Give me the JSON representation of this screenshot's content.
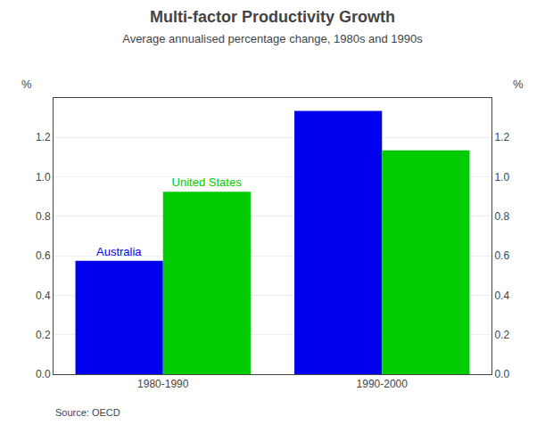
{
  "chart_data": {
    "type": "bar",
    "title": "Multi-factor Productivity Growth",
    "subtitle": "Average annualised percentage change, 1980s and 1990s",
    "source": "Source: OECD",
    "categories": [
      "1980-1990",
      "1990-2000"
    ],
    "series": [
      {
        "name": "Australia",
        "color": "#0000EE",
        "values": [
          0.575,
          1.335
        ]
      },
      {
        "name": "United States",
        "color": "#00CC00",
        "values": [
          0.925,
          1.135
        ]
      }
    ],
    "ylim": [
      0.0,
      1.4
    ],
    "yticks": [
      {
        "value": 0,
        "label": "0.0"
      },
      0.2,
      0.4,
      0.6,
      0.8,
      {
        "value": 1,
        "label": "1.0"
      },
      1.2
    ],
    "y2lim": [
      0.0,
      1.4
    ],
    "y2ticks": [
      {
        "value": 0,
        "label": "0.0"
      },
      0.2,
      0.4,
      0.6,
      0.8,
      {
        "value": 1,
        "label": "1.0"
      },
      1.2
    ],
    "ylabel": "%",
    "y2label": "%",
    "grid": true
  }
}
